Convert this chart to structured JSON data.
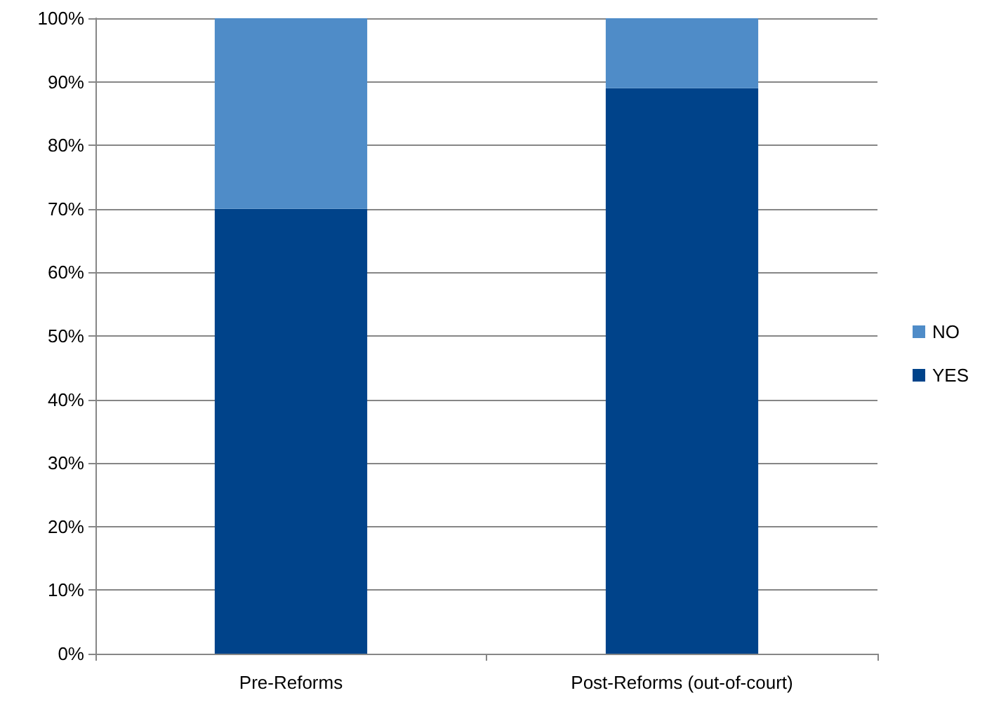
{
  "chart_data": {
    "type": "bar",
    "stacked": true,
    "categories": [
      "Pre-Reforms",
      "Post-Reforms (out-of-court)"
    ],
    "series": [
      {
        "name": "YES",
        "color": "#00438a",
        "values": [
          70,
          89
        ]
      },
      {
        "name": "NO",
        "color": "#4f8cc8",
        "values": [
          30,
          11
        ]
      }
    ],
    "ylim": [
      0,
      100
    ],
    "yticks": [
      {
        "value": 0,
        "label": "0%"
      },
      {
        "value": 10,
        "label": "10%"
      },
      {
        "value": 20,
        "label": "20%"
      },
      {
        "value": 30,
        "label": "30%"
      },
      {
        "value": 40,
        "label": "40%"
      },
      {
        "value": 50,
        "label": "50%"
      },
      {
        "value": 60,
        "label": "60%"
      },
      {
        "value": 70,
        "label": "70%"
      },
      {
        "value": 80,
        "label": "80%"
      },
      {
        "value": 90,
        "label": "90%"
      },
      {
        "value": 100,
        "label": "100%"
      }
    ],
    "grid": "y",
    "legend": "right"
  }
}
